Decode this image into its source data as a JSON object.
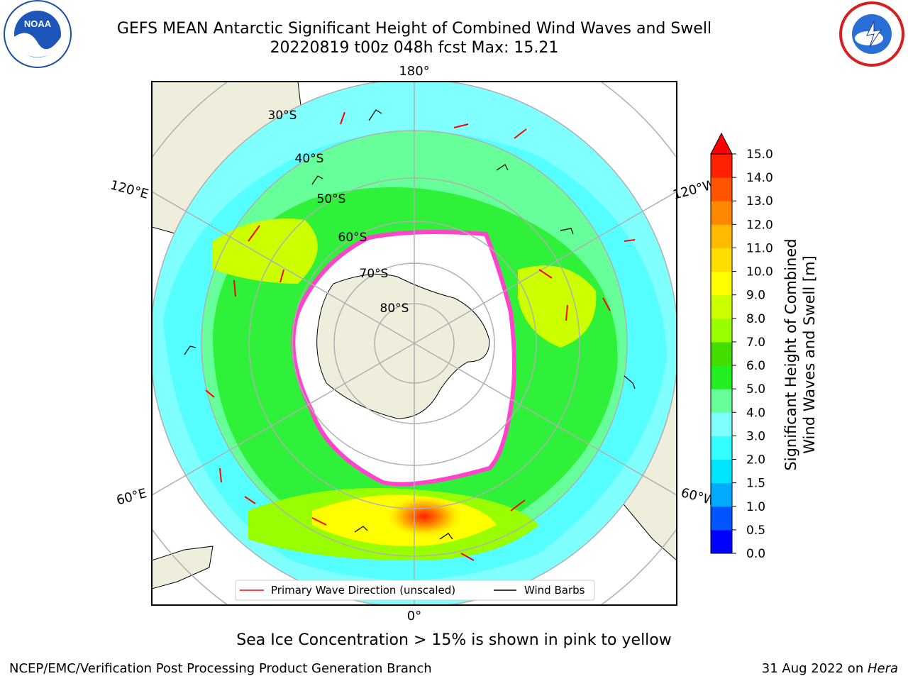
{
  "title_line1": "GEFS MEAN Antarctic Significant Height of Combined Wind Waves and Swell",
  "title_line2": "20220819 t00z 048h fcst   Max: 15.21",
  "max_value": 15.21,
  "map": {
    "projection": "South Polar Stereographic",
    "longitude_labels": [
      "180°",
      "120°E",
      "120°W",
      "60°E",
      "60°W",
      "0°"
    ],
    "latitude_labels": [
      "30°S",
      "40°S",
      "50°S",
      "60°S",
      "70°S",
      "80°S"
    ],
    "legend": {
      "primary_wave_label": "Primary Wave Direction (unscaled)",
      "wind_barbs_label": "Wind Barbs",
      "primary_wave_color": "#ff0000",
      "wind_barbs_color": "#000000"
    }
  },
  "colorbar": {
    "title_line1": "Significant Height of Combined",
    "title_line2": "Wind Waves and Swell [m]",
    "ticks": [
      "15.0",
      "14.0",
      "13.0",
      "12.0",
      "11.0",
      "10.0",
      "9.0",
      "8.0",
      "7.0",
      "6.0",
      "5.0",
      "4.0",
      "3.0",
      "2.0",
      "1.5",
      "1.0",
      "0.5",
      "0.0"
    ],
    "colors": [
      "#0000ff",
      "#0055ff",
      "#00aaff",
      "#00e5ff",
      "#33ffff",
      "#80ffff",
      "#66ff99",
      "#22ee22",
      "#44dd00",
      "#99ff00",
      "#ccff00",
      "#ffff00",
      "#ffdd00",
      "#ffbb00",
      "#ff8800",
      "#ff5500",
      "#ff2200"
    ]
  },
  "footer_note": "Sea Ice Concentration > 15% is shown in pink to yellow",
  "credit": "NCEP/EMC/Verification Post Processing Product Generation Branch",
  "date_text": "31 Aug 2022 on ",
  "machine": "Hera",
  "colors": {
    "land": "#efeddb",
    "ice_edge": "#ff44cc",
    "grid": "#b0b0b0",
    "ocean_base": "#80ffff"
  }
}
